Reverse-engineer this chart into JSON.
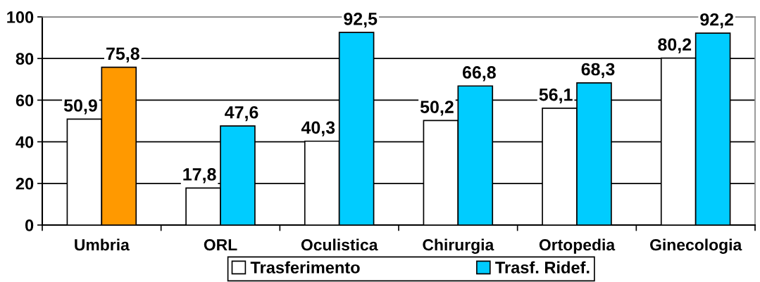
{
  "chart_data": {
    "type": "bar",
    "categories": [
      "Umbria",
      "ORL",
      "Oculistica",
      "Chirurgia",
      "Ortopedia",
      "Ginecologia"
    ],
    "series": [
      {
        "name": "Trasferimento",
        "color": "#ffffff",
        "values": [
          50.9,
          17.8,
          40.3,
          50.2,
          56.1,
          80.2
        ],
        "value_labels": [
          "50,9",
          "17,8",
          "40,3",
          "50,2",
          "56,1",
          "80,2"
        ]
      },
      {
        "name": "Trasf. Ridef.",
        "color": "#00ccff",
        "colors": [
          "#ff9900",
          "#00ccff",
          "#00ccff",
          "#00ccff",
          "#00ccff",
          "#00ccff"
        ],
        "values": [
          75.8,
          47.6,
          92.5,
          66.8,
          68.3,
          92.2
        ],
        "value_labels": [
          "75,8",
          "47,6",
          "92,5",
          "66,8",
          "68,3",
          "92,2"
        ]
      }
    ],
    "ylim": [
      0,
      100
    ],
    "yticks": [
      0,
      20,
      40,
      60,
      80,
      100
    ],
    "grid": "y",
    "legend": "bottom"
  }
}
